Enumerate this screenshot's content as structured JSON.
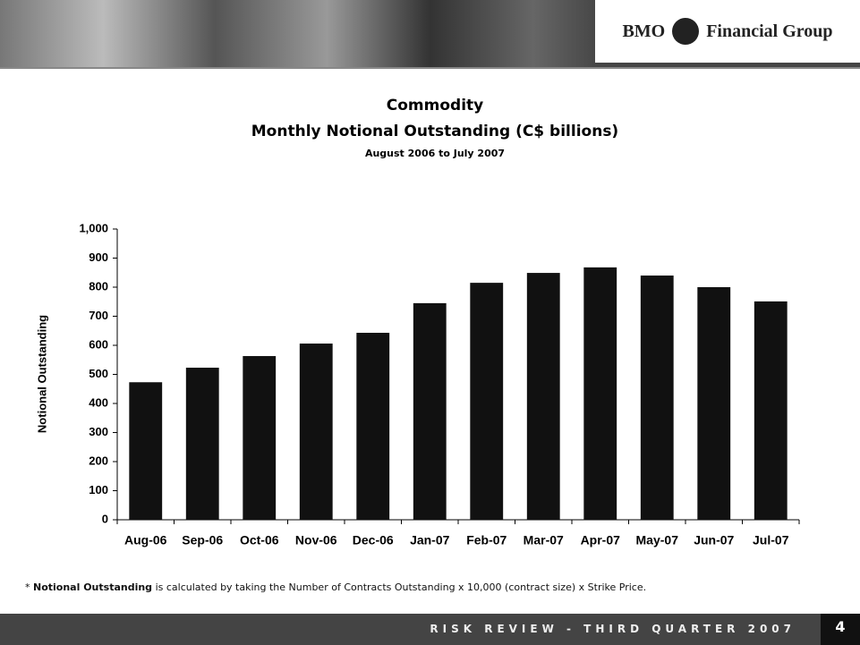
{
  "logo": {
    "left": "BMO",
    "right": "Financial Group"
  },
  "chart_data": {
    "type": "bar",
    "title": [
      "Commodity",
      "Monthly Notional Outstanding (C$ billions)"
    ],
    "subtitle": "August 2006 to July 2007",
    "y_label": "Notional Outstanding",
    "categories": [
      "Aug-06",
      "Sep-06",
      "Oct-06",
      "Nov-06",
      "Dec-06",
      "Jan-07",
      "Feb-07",
      "Mar-07",
      "Apr-07",
      "May-07",
      "Jun-07",
      "Jul-07"
    ],
    "values": [
      473,
      523,
      563,
      606,
      643,
      745,
      815,
      849,
      868,
      840,
      800,
      751
    ],
    "color": "#111111",
    "ylim": [
      0,
      1000
    ],
    "yticks": [
      0,
      100,
      200,
      300,
      400,
      500,
      600,
      700,
      800,
      900,
      {
        "value": 1000,
        "label": "1,000"
      }
    ],
    "grid": false
  },
  "footnote": {
    "marker": "*",
    "bold": "Notional Outstanding",
    "text": "is calculated by taking the Number of Contracts Outstanding x 10,000 (contract size) x Strike Price."
  },
  "footer": {
    "text": "RISK REVIEW - THIRD QUARTER 2007",
    "page": "4"
  }
}
